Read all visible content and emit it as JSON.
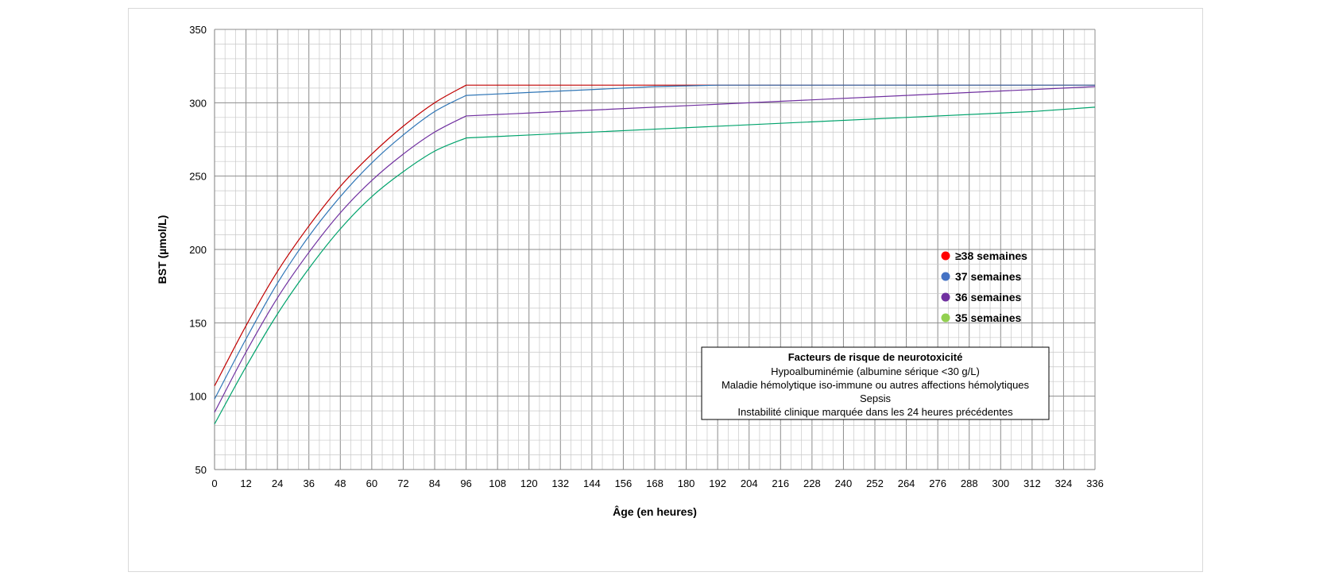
{
  "chart_data": {
    "type": "line",
    "title": "",
    "xlabel": "Âge (en heures)",
    "ylabel": "BST (µmol/L)",
    "xlim": [
      0,
      336
    ],
    "ylim": [
      50,
      350
    ],
    "x_ticks": [
      0,
      12,
      24,
      36,
      48,
      60,
      72,
      84,
      96,
      108,
      120,
      132,
      144,
      156,
      168,
      180,
      192,
      204,
      216,
      228,
      240,
      252,
      264,
      276,
      288,
      300,
      312,
      324,
      336
    ],
    "x_tick_labels": [
      "0",
      "12",
      "24",
      "36",
      "48",
      "60",
      "72",
      "84",
      "96",
      "108",
      "120",
      "132",
      "144",
      "156",
      "168",
      "180",
      "192",
      "204",
      "216",
      "228",
      "240",
      "252",
      "264",
      "276",
      "288",
      "300",
      "312",
      "324",
      "336"
    ],
    "y_ticks": [
      50,
      100,
      150,
      200,
      250,
      300,
      350
    ],
    "y_tick_labels": [
      "50",
      "100",
      "150",
      "200",
      "250",
      "300",
      "350"
    ],
    "x_minor_step": 4,
    "y_minor_step": 10,
    "grid": true,
    "legend_position": "right",
    "series": [
      {
        "name": "≥38 semaines",
        "color": "#c00000",
        "marker_color": "#ff0000",
        "x": [
          0,
          12,
          24,
          36,
          48,
          60,
          72,
          84,
          96,
          120,
          168,
          240,
          336
        ],
        "y": [
          107,
          148,
          185,
          216,
          243,
          265,
          284,
          300,
          312,
          312,
          312,
          312,
          312
        ]
      },
      {
        "name": "37 semaines",
        "color": "#2e75b6",
        "marker_color": "#4472c4",
        "x": [
          0,
          12,
          24,
          36,
          48,
          60,
          72,
          84,
          96,
          120,
          144,
          168,
          192,
          240,
          336
        ],
        "y": [
          98,
          139,
          177,
          209,
          236,
          259,
          278,
          294,
          305,
          307,
          309,
          311,
          312,
          312,
          312
        ]
      },
      {
        "name": "36 semaines",
        "color": "#7030a0",
        "marker_color": "#7030a0",
        "x": [
          0,
          12,
          24,
          36,
          48,
          60,
          72,
          84,
          96,
          120,
          168,
          216,
          264,
          312,
          336
        ],
        "y": [
          89,
          130,
          167,
          198,
          225,
          247,
          265,
          280,
          291,
          293,
          297,
          301,
          305,
          309,
          311
        ]
      },
      {
        "name": "35 semaines",
        "color": "#00a36c",
        "marker_color": "#92d050",
        "x": [
          0,
          12,
          24,
          36,
          48,
          60,
          72,
          84,
          96,
          120,
          168,
          216,
          264,
          312,
          336
        ],
        "y": [
          81,
          120,
          156,
          187,
          214,
          236,
          253,
          267,
          276,
          278,
          282,
          286,
          290,
          294,
          297
        ]
      }
    ],
    "annotation_box": {
      "title": "Facteurs de risque de neurotoxicité",
      "lines": [
        "Hypoalbuminémie (albumine sérique <30 g/L)",
        "Maladie hémolytique iso-immune ou autres affections hémolytiques",
        "Sepsis",
        "Instabilité clinique marquée dans les 24 heures précédentes"
      ]
    }
  }
}
